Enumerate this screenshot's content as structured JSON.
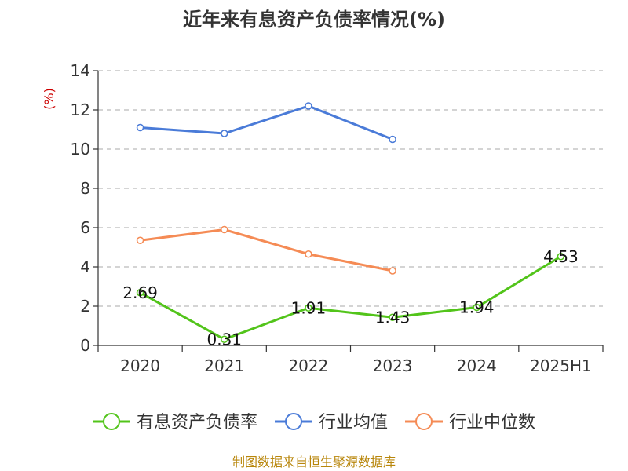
{
  "chart_data": {
    "type": "line",
    "title": "近年来有息资产负债率情况(%)",
    "ylabel": "(%)",
    "categories": [
      "2020",
      "2021",
      "2022",
      "2023",
      "2024",
      "2025H1"
    ],
    "ylim": [
      0,
      14
    ],
    "yticks": [
      0,
      2,
      4,
      6,
      8,
      10,
      12,
      14
    ],
    "grid": true,
    "legend_position": "bottom",
    "series": [
      {
        "name": "有息资产负债率",
        "color": "#52c41a",
        "values": [
          2.69,
          0.31,
          1.91,
          1.43,
          1.94,
          4.53
        ],
        "labels": [
          "2.69",
          "0.31",
          "1.91",
          "1.43",
          "1.94",
          "4.53"
        ]
      },
      {
        "name": "行业均值",
        "color": "#4a7bd8",
        "values": [
          11.1,
          10.8,
          12.2,
          10.5,
          null,
          null
        ]
      },
      {
        "name": "行业中位数",
        "color": "#f58b55",
        "values": [
          5.35,
          5.9,
          4.65,
          3.8,
          null,
          null
        ]
      }
    ]
  },
  "source": "制图数据来自恒生聚源数据库"
}
